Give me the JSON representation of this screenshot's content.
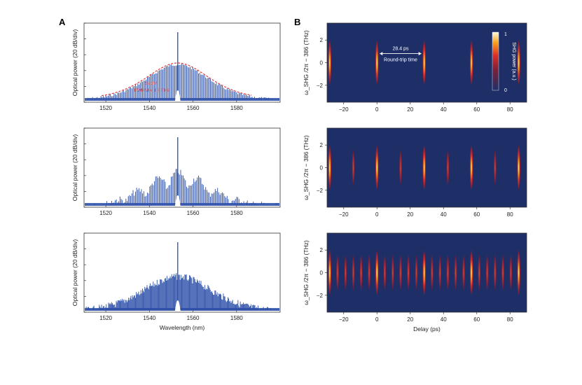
{
  "panel_labels": {
    "a": "A",
    "b": "B"
  },
  "colors": {
    "spectrum": "#2b4ea8",
    "fit": "#e23b3b",
    "heat_bg": "#1e2f68"
  },
  "chart_data": [
    {
      "type": "line",
      "panel": "A",
      "row": 1,
      "title": "",
      "xlabel": "",
      "ylabel": "Optical power (20 dB/div)",
      "xlim": [
        1510,
        1600
      ],
      "xticks": [
        "1520",
        "1540",
        "1560",
        "1580"
      ],
      "envelope": "sech2",
      "center_nm": 1553,
      "fit_label": "Sech²",
      "fit_annotation": "FWHM = 1.6 THz",
      "pattern": "clean comb with smooth sech-squared envelope"
    },
    {
      "type": "line",
      "panel": "A",
      "row": 2,
      "xlabel": "",
      "ylabel": "Optical power (20 dB/div)",
      "xlim": [
        1510,
        1600
      ],
      "xticks": [
        "1520",
        "1540",
        "1560",
        "1580"
      ],
      "center_nm": 1553,
      "pattern": "comb with modulated (two-pulse) envelope"
    },
    {
      "type": "line",
      "panel": "A",
      "row": 3,
      "xlabel": "Wavelength (nm)",
      "ylabel": "Optical power (20 dB/div)",
      "xlim": [
        1510,
        1600
      ],
      "xticks": [
        "1520",
        "1540",
        "1560",
        "1580"
      ],
      "center_nm": 1553,
      "pattern": "comb with multi-pulse dense envelope"
    },
    {
      "type": "heatmap",
      "panel": "B",
      "row": 1,
      "xlabel": "",
      "ylabel": "ω_SHG /2π − 386 (THz)",
      "xlim": [
        -30,
        90
      ],
      "ylim": [
        -3.5,
        3.5
      ],
      "xticks": [
        "−20",
        "0",
        "20",
        "40",
        "60",
        "80"
      ],
      "yticks": [
        "2",
        "0",
        "−2"
      ],
      "pulse_delays_ps": [
        -28.4,
        0,
        28.4,
        56.8,
        85.2
      ],
      "pulse_intensity": [
        0.8,
        0.95,
        0.9,
        0.8,
        0.85
      ],
      "roundtrip_label": "28.4 ps",
      "roundtrip_caption": "Round-trip time",
      "colorbar": {
        "label": "SHG power (a.u.)",
        "max": "1",
        "min": "0"
      }
    },
    {
      "type": "heatmap",
      "panel": "B",
      "row": 2,
      "xlabel": "",
      "ylabel": "ω_SHG /2π − 386 (THz)",
      "xlim": [
        -30,
        90
      ],
      "ylim": [
        -3.5,
        3.5
      ],
      "xticks": [
        "−20",
        "0",
        "20",
        "40",
        "60",
        "80"
      ],
      "yticks": [
        "2",
        "0",
        "−2"
      ],
      "pulse_delays_ps": [
        -28.4,
        -14.2,
        0,
        14.2,
        28.4,
        42.6,
        56.8,
        71,
        85.2
      ],
      "pulse_intensity": [
        0.85,
        0.55,
        0.95,
        0.5,
        0.85,
        0.55,
        0.85,
        0.5,
        0.85
      ]
    },
    {
      "type": "heatmap",
      "panel": "B",
      "row": 3,
      "xlabel": "Delay (ps)",
      "ylabel": "ω_SHG /2π − 386 (THz)",
      "xlim": [
        -30,
        90
      ],
      "ylim": [
        -3.5,
        3.5
      ],
      "xticks": [
        "−20",
        "0",
        "20",
        "40",
        "60",
        "80"
      ],
      "yticks": [
        "2",
        "0",
        "−2"
      ],
      "pulse_delays_ps": [
        -28.4,
        -23.7,
        -18.9,
        -14.2,
        -9.5,
        -4.7,
        0,
        4.7,
        9.5,
        14.2,
        18.9,
        23.7,
        28.4,
        33.1,
        37.9,
        42.6,
        47.3,
        52.1,
        56.8,
        61.5,
        66.3,
        71,
        75.7,
        80.5,
        85.2
      ],
      "pulse_intensity": [
        0.8,
        0.55,
        0.5,
        0.55,
        0.6,
        0.5,
        0.9,
        0.55,
        0.5,
        0.55,
        0.6,
        0.5,
        0.85,
        0.55,
        0.5,
        0.55,
        0.6,
        0.5,
        0.85,
        0.55,
        0.5,
        0.55,
        0.6,
        0.5,
        0.8
      ]
    }
  ]
}
